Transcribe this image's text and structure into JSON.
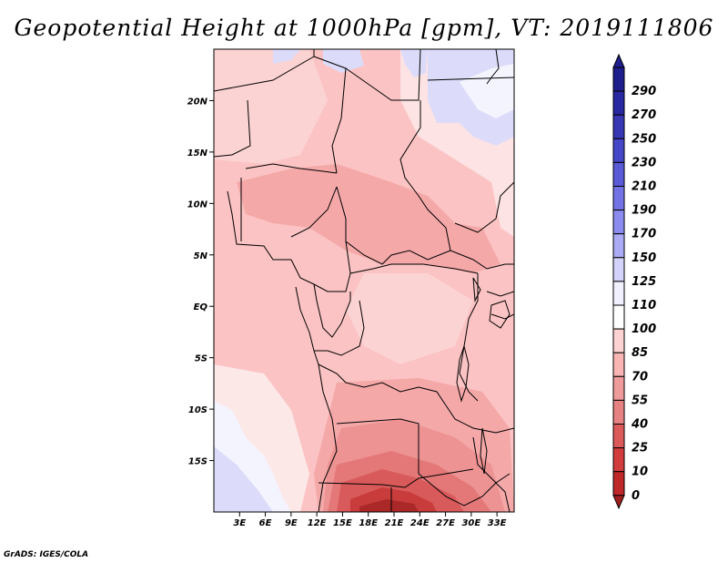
{
  "title": "Geopotential Height at 1000hPa [gpm], VT: 2019111806",
  "credit": "GrADS: IGES/COLA",
  "map": {
    "lon_range": [
      0,
      35
    ],
    "lat_range": [
      -20,
      25
    ],
    "lat_ticks": [
      {
        "value": 20,
        "label": "20N"
      },
      {
        "value": 15,
        "label": "15N"
      },
      {
        "value": 10,
        "label": "10N"
      },
      {
        "value": 5,
        "label": "5N"
      },
      {
        "value": 0,
        "label": "EQ"
      },
      {
        "value": -5,
        "label": "5S"
      },
      {
        "value": -10,
        "label": "10S"
      },
      {
        "value": -15,
        "label": "15S"
      }
    ],
    "lon_ticks": [
      {
        "value": 3,
        "label": "3E"
      },
      {
        "value": 6,
        "label": "6E"
      },
      {
        "value": 9,
        "label": "9E"
      },
      {
        "value": 12,
        "label": "12E"
      },
      {
        "value": 15,
        "label": "15E"
      },
      {
        "value": 18,
        "label": "18E"
      },
      {
        "value": 21,
        "label": "21E"
      },
      {
        "value": 24,
        "label": "24E"
      },
      {
        "value": 27,
        "label": "27E"
      },
      {
        "value": 30,
        "label": "30E"
      },
      {
        "value": 33,
        "label": "33E"
      }
    ]
  },
  "colorbar": {
    "levels": [
      {
        "label": "290",
        "color": "#1e1e8c"
      },
      {
        "label": "270",
        "color": "#2828a0"
      },
      {
        "label": "250",
        "color": "#3737b4"
      },
      {
        "label": "230",
        "color": "#4646c8"
      },
      {
        "label": "210",
        "color": "#5a5ad7"
      },
      {
        "label": "190",
        "color": "#7373e6"
      },
      {
        "label": "170",
        "color": "#8c8cf0"
      },
      {
        "label": "150",
        "color": "#aaaaf5"
      },
      {
        "label": "125",
        "color": "#d2d2fa"
      },
      {
        "label": "110",
        "color": "#f0f0ff"
      },
      {
        "label": "100",
        "color": "#ffffff"
      },
      {
        "label": "85",
        "color": "#fdd2d2"
      },
      {
        "label": "70",
        "color": "#f9b4b4"
      },
      {
        "label": "55",
        "color": "#f09b9b"
      },
      {
        "label": "40",
        "color": "#e68282"
      },
      {
        "label": "25",
        "color": "#dc5a5a"
      },
      {
        "label": "10",
        "color": "#d23c3c"
      },
      {
        "label": "0",
        "color": "#be2828"
      }
    ],
    "bottom_color": "#a01e1e"
  }
}
